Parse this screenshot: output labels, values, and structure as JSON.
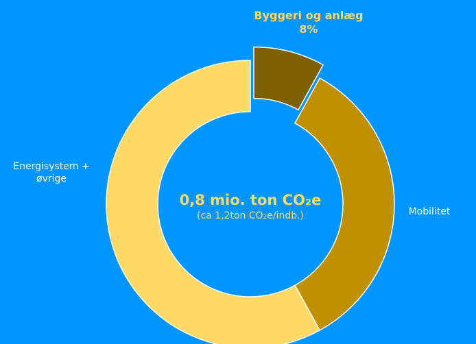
{
  "chart_data": {
    "type": "donut",
    "center_title": "0,8 mio. ton CO₂e",
    "center_subtitle": "(ca 1,2ton CO₂e/indb.)",
    "categories": [
      "Byggeri og anlæg",
      "Mobilitet",
      "Energisystem + øvrige"
    ],
    "values": [
      8,
      34,
      58
    ],
    "value_labels": [
      "8%",
      null,
      null
    ],
    "colors": [
      "#7f6000",
      "#bf9000",
      "#ffd966"
    ],
    "exploded": [
      true,
      false,
      false
    ]
  }
}
